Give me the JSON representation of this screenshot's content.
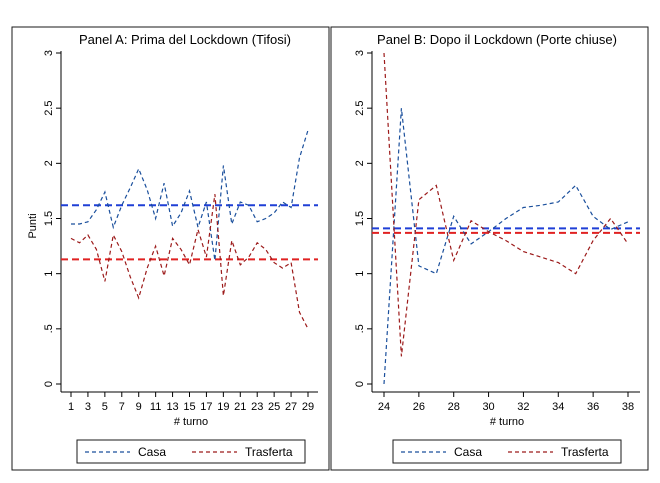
{
  "figure": {
    "background": "#ffffff",
    "panel_border": "#1a1a1a"
  },
  "colors": {
    "casa": "#1a4f9c",
    "trasferta": "#9c1a1a",
    "casa_mean": "#1f3fd6",
    "trasferta_mean": "#e02222"
  },
  "chart_data": [
    {
      "type": "line",
      "title": "Panel A: Prima del Lockdown (Tifosi)",
      "xlabel": "# turno",
      "ylabel": "Punti",
      "xlim": [
        1,
        29
      ],
      "ylim": [
        0,
        3
      ],
      "xticks": [
        1,
        3,
        5,
        7,
        9,
        11,
        13,
        15,
        17,
        19,
        21,
        23,
        25,
        27,
        29
      ],
      "yticks": [
        0,
        0.5,
        1,
        1.5,
        2,
        2.5,
        3
      ],
      "ytick_labels": [
        "0",
        ".5",
        "1",
        "1.5",
        "2",
        "2.5",
        "3"
      ],
      "grid": false,
      "legend_position": "bottom",
      "x": [
        1,
        2,
        3,
        4,
        5,
        6,
        7,
        8,
        9,
        10,
        11,
        12,
        13,
        14,
        15,
        16,
        17,
        18,
        19,
        20,
        21,
        22,
        23,
        24,
        25,
        26,
        27,
        28,
        29
      ],
      "series": [
        {
          "name": "Casa",
          "color": "#1a4f9c",
          "style": "dashed",
          "values": [
            1.45,
            1.45,
            1.47,
            1.58,
            1.74,
            1.42,
            1.62,
            1.78,
            1.95,
            1.76,
            1.5,
            1.82,
            1.43,
            1.55,
            1.75,
            1.42,
            1.65,
            1.12,
            1.98,
            1.45,
            1.65,
            1.62,
            1.47,
            1.5,
            1.55,
            1.65,
            1.6,
            2.05,
            2.3
          ]
        },
        {
          "name": "Trasferta",
          "color": "#9c1a1a",
          "style": "dashed",
          "values": [
            1.32,
            1.28,
            1.35,
            1.22,
            0.93,
            1.35,
            1.2,
            0.97,
            0.78,
            1.05,
            1.25,
            0.98,
            1.32,
            1.22,
            1.08,
            1.4,
            1.15,
            1.72,
            0.8,
            1.3,
            1.08,
            1.15,
            1.28,
            1.22,
            1.1,
            1.05,
            1.1,
            0.65,
            0.5
          ]
        }
      ],
      "reference_lines": [
        {
          "label": "Casa mean",
          "y": 1.62,
          "color": "#1f3fd6"
        },
        {
          "label": "Trasferta mean",
          "y": 1.13,
          "color": "#e02222"
        }
      ]
    },
    {
      "type": "line",
      "title": "Panel B: Dopo il Lockdown (Porte chiuse)",
      "xlabel": "# turno",
      "ylabel": "Punti",
      "xlim": [
        24,
        38
      ],
      "ylim": [
        0,
        3
      ],
      "xticks": [
        24,
        26,
        28,
        30,
        32,
        34,
        36,
        38
      ],
      "yticks": [
        0,
        0.5,
        1,
        1.5,
        2,
        2.5,
        3
      ],
      "ytick_labels": [
        "0",
        ".5",
        "1",
        "1.5",
        "2",
        "2.5",
        "3"
      ],
      "grid": false,
      "legend_position": "bottom",
      "x": [
        24,
        25,
        26,
        27,
        28,
        29,
        30,
        31,
        32,
        33,
        34,
        35,
        36,
        37,
        38
      ],
      "series": [
        {
          "name": "Casa",
          "color": "#1a4f9c",
          "style": "dashed",
          "values": [
            0,
            2.5,
            1.07,
            1.0,
            1.52,
            1.27,
            1.38,
            1.5,
            1.6,
            1.62,
            1.65,
            1.8,
            1.52,
            1.4,
            1.47
          ]
        },
        {
          "name": "Trasferta",
          "color": "#9c1a1a",
          "style": "dashed",
          "values": [
            3.0,
            0.25,
            1.67,
            1.8,
            1.12,
            1.48,
            1.38,
            1.3,
            1.2,
            1.15,
            1.1,
            1.0,
            1.3,
            1.5,
            1.27
          ]
        }
      ],
      "reference_lines": [
        {
          "label": "Casa mean",
          "y": 1.41,
          "color": "#1f3fd6"
        },
        {
          "label": "Trasferta mean",
          "y": 1.37,
          "color": "#e02222"
        }
      ]
    }
  ]
}
